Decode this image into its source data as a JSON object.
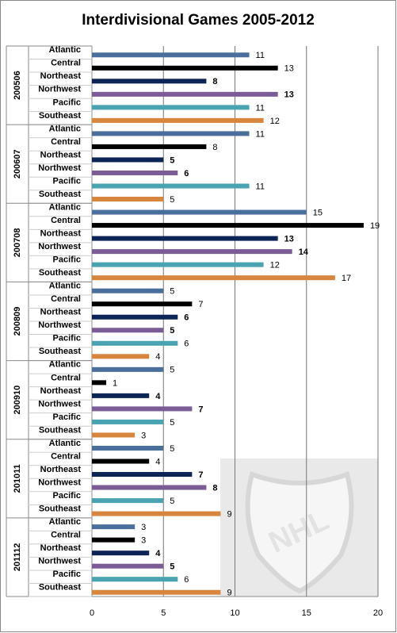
{
  "chart_data": {
    "type": "bar",
    "orientation": "horizontal",
    "title": "Interdivisional Games 2005-2012",
    "categories": [
      "200506",
      "200607",
      "200708",
      "200809",
      "200910",
      "201011",
      "201112"
    ],
    "series": [
      {
        "name": "Atlantic",
        "color": "#4a6f9c",
        "values": [
          11,
          11,
          15,
          5,
          5,
          5,
          3
        ]
      },
      {
        "name": "Central",
        "color": "#000000",
        "values": [
          13,
          8,
          19,
          7,
          1,
          4,
          3
        ]
      },
      {
        "name": "Northeast",
        "color": "#0c2456",
        "values": [
          8,
          5,
          13,
          6,
          4,
          7,
          4
        ]
      },
      {
        "name": "Northwest",
        "color": "#7b5c96",
        "values": [
          13,
          6,
          14,
          5,
          7,
          8,
          5
        ]
      },
      {
        "name": "Pacific",
        "color": "#4aa3b0",
        "values": [
          11,
          11,
          12,
          6,
          5,
          5,
          6
        ]
      },
      {
        "name": "Southeast",
        "color": "#d8853e",
        "values": [
          12,
          5,
          17,
          4,
          3,
          9,
          9
        ]
      }
    ],
    "xlim": [
      0,
      20
    ],
    "xticks": [
      0,
      5,
      10,
      15,
      20
    ],
    "grid": true
  }
}
